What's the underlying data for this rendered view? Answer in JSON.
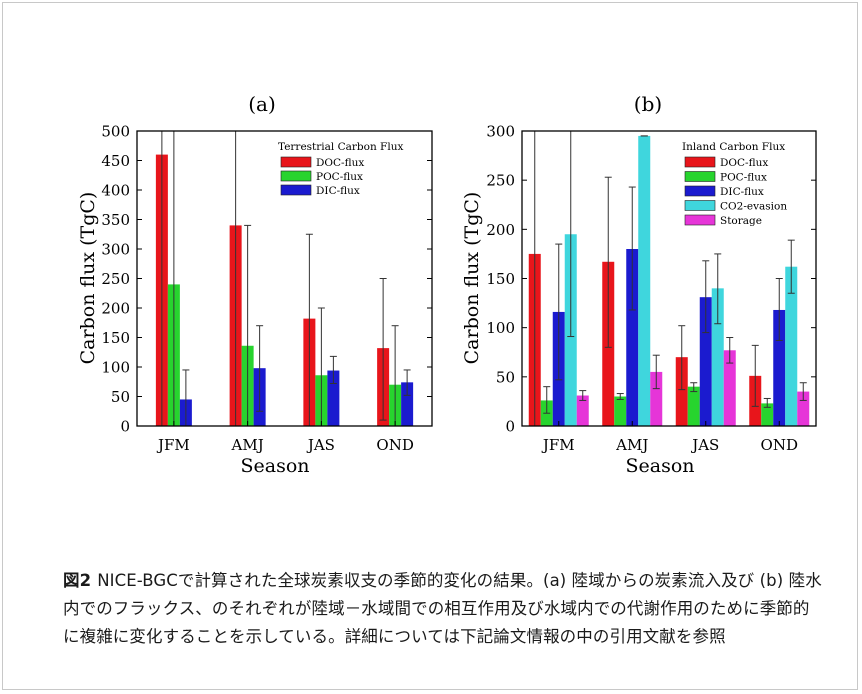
{
  "caption": {
    "label": "図2",
    "text": "NICE-BGCで計算された全球炭素収支の季節的変化の結果。(a) 陸域からの炭素流入及び (b) 陸水内でのフラックス、のそれぞれが陸域－水域間での相互作用及び水域内での代謝作用のために季節的に複雑に変化することを示している。詳細については下記論文情報の中の引用文献を参照"
  },
  "colors": {
    "DOC-flux": "#e8151b",
    "POC-flux": "#27d42e",
    "DIC-flux": "#1b1bcf",
    "CO2-evasion": "#3fd6dd",
    "Storage": "#e635d8"
  },
  "chart_data": [
    {
      "type": "bar",
      "title": "(a)",
      "legend_title": "Terrestrial Carbon Flux",
      "legend_position": "top-right",
      "xlabel": "Season",
      "ylabel": "Carbon flux (TgC)",
      "categories": [
        "JFM",
        "AMJ",
        "JAS",
        "OND"
      ],
      "ylim": [
        0,
        500
      ],
      "yticks": [
        0,
        50,
        100,
        150,
        200,
        250,
        300,
        350,
        400,
        450,
        500
      ],
      "series": [
        {
          "name": "DOC-flux",
          "values": [
            460,
            340,
            182,
            132
          ],
          "err_low": [
            0,
            0,
            0,
            10
          ],
          "err_high": [
            500,
            500,
            325,
            250
          ]
        },
        {
          "name": "POC-flux",
          "values": [
            240,
            136,
            86,
            70
          ],
          "err_low": [
            0,
            0,
            0,
            0
          ],
          "err_high": [
            500,
            340,
            200,
            170
          ]
        },
        {
          "name": "DIC-flux",
          "values": [
            45,
            98,
            94,
            74
          ],
          "err_low": [
            0,
            25,
            72,
            52
          ],
          "err_high": [
            95,
            170,
            118,
            95
          ]
        }
      ]
    },
    {
      "type": "bar",
      "title": "(b)",
      "legend_title": "Inland Carbon Flux",
      "legend_position": "top-right",
      "xlabel": "Season",
      "ylabel": "Carbon flux (TgC)",
      "categories": [
        "JFM",
        "AMJ",
        "JAS",
        "OND"
      ],
      "ylim": [
        0,
        300
      ],
      "yticks": [
        0,
        50,
        100,
        150,
        200,
        250,
        300
      ],
      "series": [
        {
          "name": "DOC-flux",
          "values": [
            175,
            167,
            70,
            51
          ],
          "err_low": [
            0,
            80,
            37,
            20
          ],
          "err_high": [
            300,
            253,
            102,
            82
          ]
        },
        {
          "name": "POC-flux",
          "values": [
            26,
            30,
            40,
            23
          ],
          "err_low": [
            13,
            27,
            35,
            19
          ],
          "err_high": [
            40,
            33,
            44,
            28
          ]
        },
        {
          "name": "DIC-flux",
          "values": [
            116,
            180,
            131,
            118
          ],
          "err_low": [
            47,
            118,
            95,
            87
          ],
          "err_high": [
            185,
            243,
            168,
            150
          ]
        },
        {
          "name": "CO2-evasion",
          "values": [
            195,
            295,
            140,
            162
          ],
          "err_low": [
            91,
            295,
            104,
            135
          ],
          "err_high": [
            300,
            295,
            175,
            189
          ]
        },
        {
          "name": "Storage",
          "values": [
            31,
            55,
            77,
            35
          ],
          "err_low": [
            26,
            38,
            64,
            26
          ],
          "err_high": [
            36,
            72,
            90,
            44
          ]
        }
      ]
    }
  ]
}
